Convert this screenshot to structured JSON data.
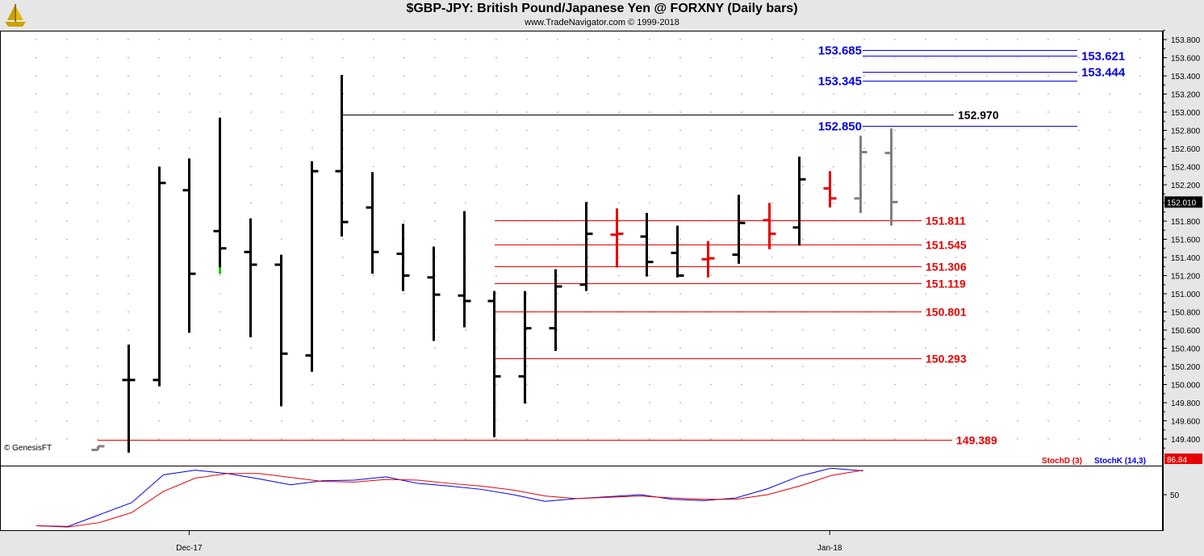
{
  "header": {
    "title": "$GBP-JPY:  British Pound/Japanese Yen @ FORXNY  (Daily bars)",
    "subtitle": "www.TradeNavigator.com © 1999-2018",
    "logo_icon": "sailboat-logo-icon"
  },
  "watermark": "© GenesisFT",
  "colors": {
    "background": "#ffffff",
    "panel": "#e6e6e6",
    "grid": "#8c8c8c",
    "bars": "#000000",
    "red": "#e60000",
    "blue": "#0000e6",
    "gray": "#808080",
    "green": "#00cc00"
  },
  "chart_data": {
    "type": "ohlc",
    "title": "$GBP-JPY:  British Pound/Japanese Yen @ FORXNY  (Daily bars)",
    "ylim": [
      149.2,
      153.9
    ],
    "ytick_labels": [
      "153.800",
      "153.600",
      "153.400",
      "153.200",
      "153.000",
      "152.800",
      "152.600",
      "152.400",
      "152.200",
      "152.000",
      "151.800",
      "151.600",
      "151.400",
      "151.200",
      "151.000",
      "150.800",
      "150.600",
      "150.400",
      "150.200",
      "150.000",
      "149.800",
      "149.600",
      "149.400"
    ],
    "xtick_labels": [
      {
        "label": "Dec-17",
        "bar_index": 3
      },
      {
        "label": "Jan-18",
        "bar_index": 24
      }
    ],
    "last_price": "152.010",
    "bars": [
      {
        "i": 0,
        "open": 149.28,
        "high": 149.32,
        "low": 149.28,
        "close": 149.32,
        "color": "gray"
      },
      {
        "i": 1,
        "open": 150.05,
        "high": 150.44,
        "low": 149.25,
        "close": 150.05,
        "color": "black"
      },
      {
        "i": 2,
        "open": 150.05,
        "high": 152.4,
        "low": 149.98,
        "close": 152.22,
        "color": "black"
      },
      {
        "i": 3,
        "open": 152.14,
        "high": 152.49,
        "low": 150.57,
        "close": 151.22,
        "color": "black"
      },
      {
        "i": 4,
        "open": 151.69,
        "high": 152.94,
        "low": 151.22,
        "close": 151.5,
        "color": "black",
        "low_tick_color": "green"
      },
      {
        "i": 5,
        "open": 151.46,
        "high": 151.83,
        "low": 150.52,
        "close": 151.32,
        "color": "black"
      },
      {
        "i": 6,
        "open": 151.32,
        "high": 151.43,
        "low": 149.76,
        "close": 150.34,
        "color": "black"
      },
      {
        "i": 7,
        "open": 150.32,
        "high": 152.46,
        "low": 150.14,
        "close": 152.35,
        "color": "black"
      },
      {
        "i": 8,
        "open": 152.35,
        "high": 153.41,
        "low": 151.63,
        "close": 151.79,
        "color": "black"
      },
      {
        "i": 9,
        "open": 151.95,
        "high": 152.34,
        "low": 151.22,
        "close": 151.46,
        "color": "black"
      },
      {
        "i": 10,
        "open": 151.44,
        "high": 151.77,
        "low": 151.03,
        "close": 151.2,
        "color": "black"
      },
      {
        "i": 11,
        "open": 151.18,
        "high": 151.52,
        "low": 150.48,
        "close": 150.99,
        "color": "black"
      },
      {
        "i": 12,
        "open": 150.98,
        "high": 151.91,
        "low": 150.63,
        "close": 150.92,
        "color": "black"
      },
      {
        "i": 13,
        "open": 150.92,
        "high": 151.03,
        "low": 149.42,
        "close": 150.09,
        "color": "black"
      },
      {
        "i": 14,
        "open": 150.09,
        "high": 151.03,
        "low": 149.79,
        "close": 150.62,
        "color": "black"
      },
      {
        "i": 15,
        "open": 150.62,
        "high": 151.27,
        "low": 150.37,
        "close": 151.08,
        "color": "black"
      },
      {
        "i": 16,
        "open": 151.1,
        "high": 152.01,
        "low": 151.03,
        "close": 151.66,
        "color": "black"
      },
      {
        "i": 17,
        "open": 151.65,
        "high": 151.94,
        "low": 151.29,
        "close": 151.66,
        "color": "red"
      },
      {
        "i": 18,
        "open": 151.63,
        "high": 151.89,
        "low": 151.19,
        "close": 151.35,
        "color": "black"
      },
      {
        "i": 19,
        "open": 151.45,
        "high": 151.75,
        "low": 151.18,
        "close": 151.2,
        "color": "black"
      },
      {
        "i": 20,
        "open": 151.38,
        "high": 151.58,
        "low": 151.18,
        "close": 151.39,
        "color": "red"
      },
      {
        "i": 21,
        "open": 151.43,
        "high": 152.09,
        "low": 151.33,
        "close": 151.78,
        "color": "black"
      },
      {
        "i": 22,
        "open": 151.81,
        "high": 152.0,
        "low": 151.49,
        "close": 151.66,
        "color": "red"
      },
      {
        "i": 23,
        "open": 151.73,
        "high": 152.51,
        "low": 151.53,
        "close": 152.26,
        "color": "black"
      },
      {
        "i": 24,
        "open": 152.16,
        "high": 152.35,
        "low": 151.95,
        "close": 152.05,
        "color": "red"
      },
      {
        "i": 25,
        "open": 152.05,
        "high": 152.74,
        "low": 151.89,
        "close": 152.56,
        "color": "gray"
      },
      {
        "i": 26,
        "open": 152.55,
        "high": 152.82,
        "low": 151.75,
        "close": 152.01,
        "color": "gray"
      }
    ],
    "levels": [
      {
        "label": "153.685",
        "value": 153.685,
        "color": "blue",
        "label_side": "left"
      },
      {
        "label": "153.621",
        "value": 153.621,
        "color": "blue",
        "label_side": "right"
      },
      {
        "label": "153.444",
        "value": 153.444,
        "color": "blue",
        "label_side": "right"
      },
      {
        "label": "153.345",
        "value": 153.345,
        "color": "blue",
        "label_side": "left"
      },
      {
        "label": "152.970",
        "value": 152.97,
        "color": "black",
        "label_side": "right"
      },
      {
        "label": "152.850",
        "value": 152.85,
        "color": "blue",
        "label_side": "left"
      },
      {
        "label": "151.811",
        "value": 151.811,
        "color": "red",
        "label_side": "right"
      },
      {
        "label": "151.545",
        "value": 151.545,
        "color": "red",
        "label_side": "right"
      },
      {
        "label": "151.306",
        "value": 151.306,
        "color": "red",
        "label_side": "right"
      },
      {
        "label": "151.119",
        "value": 151.119,
        "color": "red",
        "label_side": "right"
      },
      {
        "label": "150.801",
        "value": 150.801,
        "color": "red",
        "label_side": "right"
      },
      {
        "label": "150.293",
        "value": 150.293,
        "color": "red",
        "label_side": "right"
      },
      {
        "label": "149.389",
        "value": 149.389,
        "color": "red",
        "label_side": "right"
      }
    ],
    "stochastic": {
      "ylim": [
        0,
        100
      ],
      "ytick_labels": [
        "50"
      ],
      "last_value": "86.84",
      "series": [
        {
          "name": "StochK (14,3)",
          "color": "blue",
          "values": [
            3,
            2,
            20,
            38,
            80,
            87,
            82,
            74,
            65,
            71,
            72,
            77,
            67,
            63,
            58,
            50,
            40,
            44,
            47,
            50,
            43,
            41,
            45,
            59,
            78,
            90,
            86
          ]
        },
        {
          "name": "StochD (3)",
          "color": "red",
          "values": [
            3,
            1,
            8,
            23,
            55,
            75,
            82,
            82,
            76,
            70,
            69,
            73,
            72,
            67,
            63,
            57,
            48,
            44,
            46,
            48,
            45,
            43,
            43,
            50,
            63,
            79,
            87
          ]
        }
      ]
    }
  }
}
